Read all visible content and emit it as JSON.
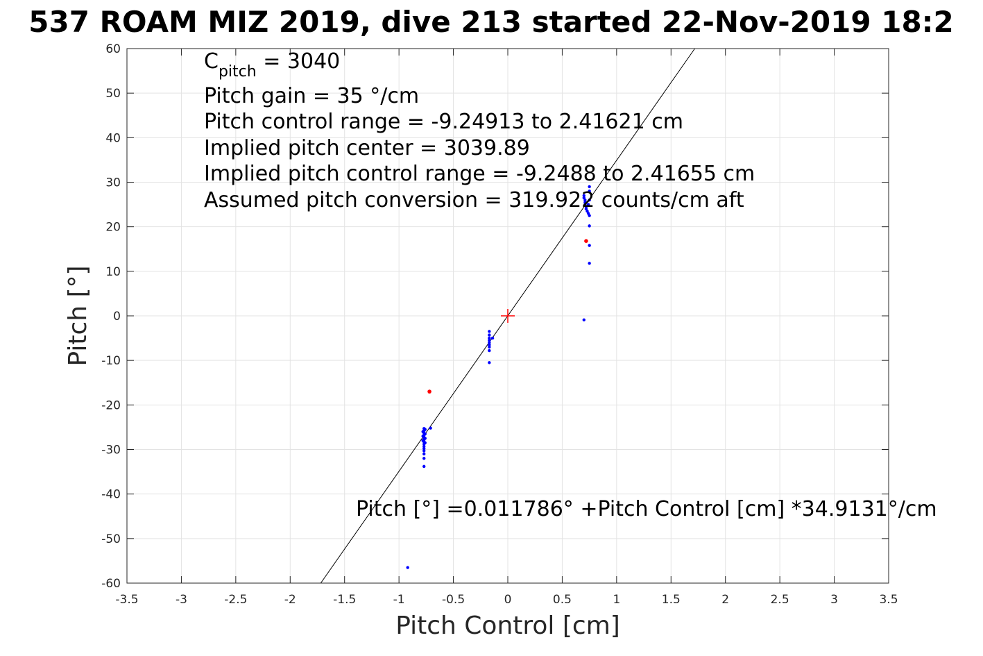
{
  "chart_data": {
    "type": "scatter",
    "title": "537 ROAM MIZ 2019, dive 213 started 22-Nov-2019 18:2",
    "xlabel": "Pitch Control [cm]",
    "ylabel": "Pitch [°]",
    "xlim": [
      -3.5,
      3.5
    ],
    "ylim": [
      -60,
      60
    ],
    "x_ticks": [
      -3.5,
      -3,
      -2.5,
      -2,
      -1.5,
      -1,
      -0.5,
      0,
      0.5,
      1,
      1.5,
      2,
      2.5,
      3,
      3.5
    ],
    "y_ticks": [
      -60,
      -50,
      -40,
      -30,
      -20,
      -10,
      0,
      10,
      20,
      30,
      40,
      50,
      60
    ],
    "x_tick_labels": [
      "-3.5",
      "-3",
      "-2.5",
      "-2",
      "-1.5",
      "-1",
      "-0.5",
      "0",
      "0.5",
      "1",
      "1.5",
      "2",
      "2.5",
      "3",
      "3.5"
    ],
    "y_tick_labels": [
      "-60",
      "-50",
      "-40",
      "-30",
      "-20",
      "-10",
      "0",
      "10",
      "20",
      "30",
      "40",
      "50",
      "60"
    ],
    "grid": true,
    "fit_line": {
      "intercept": 0.011786,
      "slope": 34.9131,
      "color": "#000000"
    },
    "center_marker": {
      "x": 0,
      "y": 0,
      "color": "#ff0000"
    },
    "annotations": {
      "c_pitch_main": "C",
      "c_pitch_sub": "pitch",
      "c_pitch_value": " = 3040",
      "lines": [
        "Pitch gain = 35 °/cm",
        "Pitch control range = -9.24913 to 2.41621 cm",
        "Implied pitch center = 3039.89",
        "Implied pitch control range = -9.2488 to 2.41655 cm",
        "Assumed pitch conversion = 319.922 counts/cm aft"
      ],
      "fit_equation": "Pitch [°] =0.011786° +Pitch Control [cm] *34.9131°/cm"
    },
    "series": [
      {
        "color": "#0000ff",
        "points": [
          [
            -0.77,
            -25.3
          ],
          [
            -0.77,
            -25.8
          ],
          [
            -0.77,
            -26.3
          ],
          [
            -0.77,
            -26.8
          ],
          [
            -0.77,
            -27.3
          ],
          [
            -0.77,
            -27.8
          ],
          [
            -0.77,
            -28.3
          ],
          [
            -0.77,
            -28.8
          ],
          [
            -0.77,
            -29.3
          ],
          [
            -0.77,
            -29.8
          ],
          [
            -0.77,
            -30.3
          ],
          [
            -0.77,
            -31.0
          ],
          [
            -0.77,
            -32.0
          ],
          [
            -0.76,
            -25.5
          ],
          [
            -0.76,
            -26.5
          ],
          [
            -0.76,
            -27.5
          ],
          [
            -0.76,
            -28.5
          ],
          [
            -0.78,
            -26.0
          ],
          [
            -0.78,
            -27.0
          ],
          [
            -0.78,
            -28.0
          ],
          [
            -0.77,
            -33.8
          ],
          [
            -0.71,
            -25.2
          ],
          [
            -0.17,
            -3.5
          ],
          [
            -0.17,
            -4.3
          ],
          [
            -0.17,
            -5.0
          ],
          [
            -0.17,
            -5.5
          ],
          [
            -0.17,
            -6.0
          ],
          [
            -0.17,
            -6.5
          ],
          [
            -0.17,
            -7.0
          ],
          [
            -0.17,
            -7.8
          ],
          [
            -0.17,
            -10.5
          ],
          [
            -0.14,
            -5.0
          ],
          [
            0.7,
            27.0
          ],
          [
            0.7,
            26.5
          ],
          [
            0.71,
            26.0
          ],
          [
            0.71,
            25.5
          ],
          [
            0.71,
            25.0
          ],
          [
            0.72,
            24.5
          ],
          [
            0.72,
            24.0
          ],
          [
            0.73,
            23.5
          ],
          [
            0.74,
            23.0
          ],
          [
            0.75,
            22.5
          ],
          [
            0.74,
            25.0
          ],
          [
            0.75,
            26.0
          ],
          [
            0.75,
            28.0
          ],
          [
            0.75,
            29.0
          ],
          [
            0.75,
            20.2
          ],
          [
            0.75,
            15.8
          ],
          [
            0.75,
            11.8
          ],
          [
            0.7,
            -0.9
          ],
          [
            -0.92,
            -56.5
          ]
        ]
      },
      {
        "color": "#ff0000",
        "points": [
          [
            -0.72,
            -17.0
          ],
          [
            0.72,
            16.8
          ]
        ]
      }
    ]
  }
}
